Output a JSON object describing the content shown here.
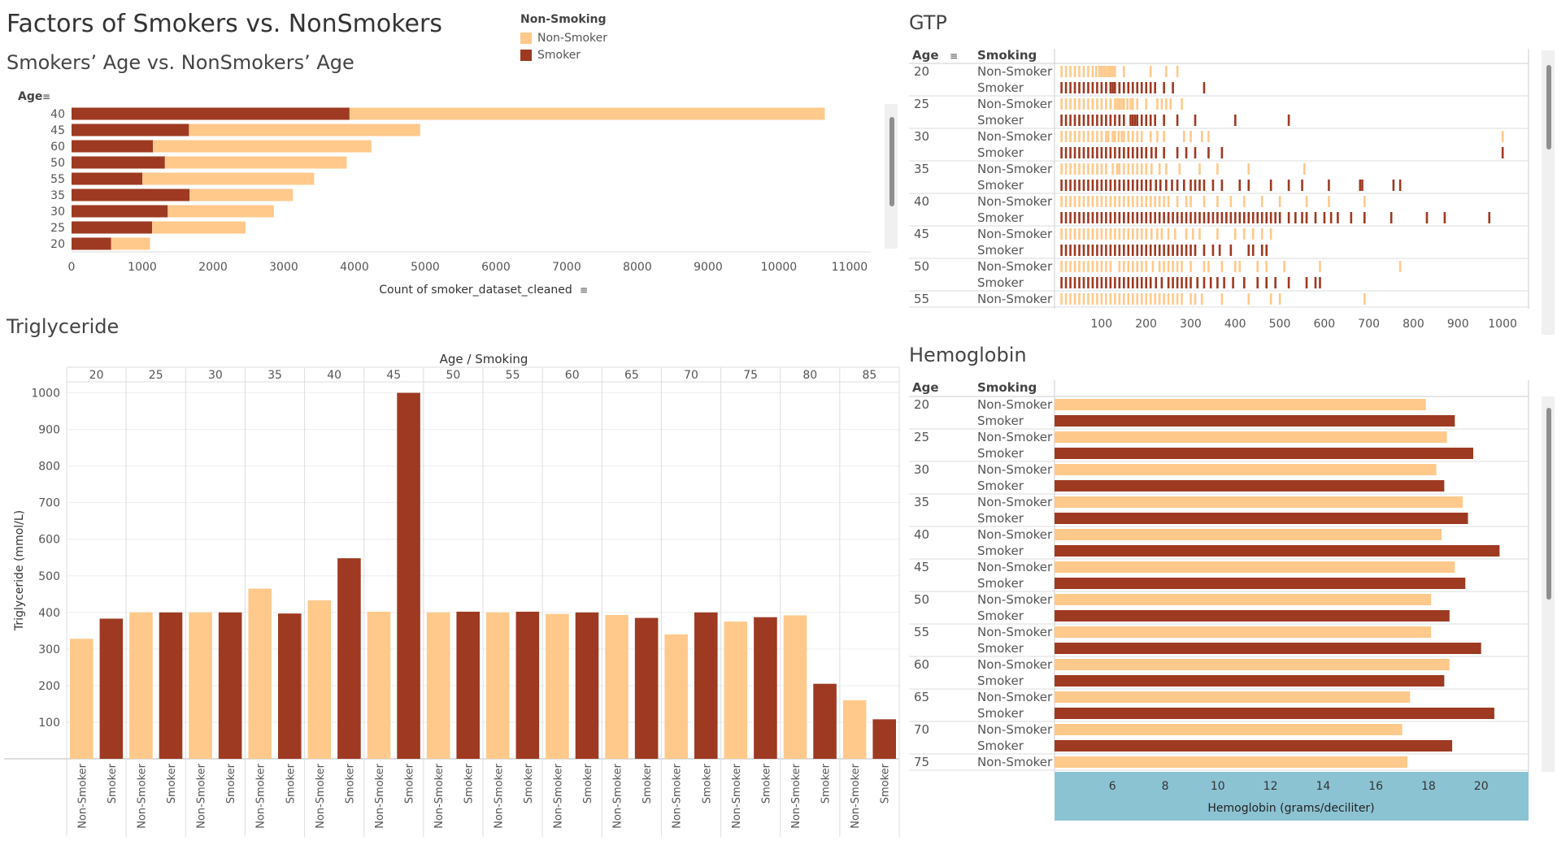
{
  "dashboard": {
    "title": "Factors of Smokers vs. NonSmokers"
  },
  "legend": {
    "title": "Non-Smoking",
    "items": [
      {
        "label": "Non-Smoker",
        "color": "#FFC98B"
      },
      {
        "label": "Smoker",
        "color": "#9E3A22"
      }
    ]
  },
  "colors": {
    "non_smoker": "#FFC98B",
    "smoker": "#9E3A22",
    "axis_highlight": "#8CC3D3"
  },
  "age_chart": {
    "title": "Smokers’ Age vs. NonSmokers’ Age",
    "chart_data": {
      "type": "bar",
      "orientation": "horizontal",
      "stacked": true,
      "y_header": "Age",
      "categories": [
        "40",
        "45",
        "60",
        "50",
        "55",
        "35",
        "30",
        "25",
        "20"
      ],
      "series": [
        {
          "name": "Smoker",
          "values": [
            3930,
            1660,
            1150,
            1320,
            1000,
            1670,
            1360,
            1140,
            560
          ]
        },
        {
          "name": "Non-Smoker",
          "values": [
            6720,
            3270,
            3090,
            2570,
            2430,
            1460,
            1500,
            1320,
            550
          ]
        }
      ],
      "xlabel": "Count of smoker_dataset_cleaned",
      "xlim": [
        0,
        11300
      ],
      "xticks": [
        0,
        1000,
        2000,
        3000,
        4000,
        5000,
        6000,
        7000,
        8000,
        9000,
        10000,
        11000
      ]
    }
  },
  "gtp_chart": {
    "title": "GTP",
    "header_age": "Age",
    "header_smoking": "Smoking",
    "chart_data": {
      "type": "scatter",
      "mark": "tick",
      "xlim": [
        0,
        1040
      ],
      "xticks": [
        100,
        200,
        300,
        400,
        500,
        600,
        700,
        800,
        900,
        1000
      ],
      "rows": [
        {
          "age": "20",
          "smoking": "Non-Smoker",
          "values": [
            10,
            20,
            30,
            40,
            50,
            60,
            70,
            80,
            88,
            95,
            100,
            105,
            110,
            115,
            120,
            125,
            130,
            150,
            210,
            245,
            270
          ]
        },
        {
          "age": "",
          "smoking": "Smoker",
          "values": [
            10,
            20,
            30,
            40,
            50,
            60,
            70,
            80,
            90,
            100,
            110,
            120,
            125,
            130,
            140,
            150,
            160,
            170,
            180,
            190,
            200,
            210,
            220,
            240,
            260,
            330
          ]
        },
        {
          "age": "25",
          "smoking": "Non-Smoker",
          "values": [
            10,
            20,
            30,
            40,
            50,
            60,
            70,
            80,
            90,
            100,
            110,
            120,
            130,
            135,
            140,
            145,
            150,
            158,
            165,
            170,
            180,
            200,
            225,
            235,
            245,
            255,
            280
          ]
        },
        {
          "age": "",
          "smoking": "Smoker",
          "values": [
            10,
            20,
            30,
            40,
            50,
            60,
            70,
            80,
            90,
            100,
            110,
            120,
            130,
            140,
            150,
            165,
            170,
            175,
            180,
            190,
            200,
            210,
            220,
            240,
            270,
            310,
            400,
            520
          ]
        },
        {
          "age": "30",
          "smoking": "Non-Smoker",
          "values": [
            10,
            20,
            30,
            40,
            50,
            60,
            70,
            80,
            90,
            100,
            110,
            115,
            125,
            130,
            138,
            145,
            150,
            160,
            170,
            180,
            190,
            210,
            225,
            240,
            285,
            300,
            325,
            340,
            1000
          ]
        },
        {
          "age": "",
          "smoking": "Smoker",
          "values": [
            10,
            20,
            30,
            40,
            50,
            60,
            70,
            80,
            90,
            100,
            110,
            120,
            130,
            140,
            150,
            160,
            170,
            180,
            190,
            200,
            212,
            222,
            240,
            270,
            290,
            310,
            340,
            370,
            1000
          ]
        },
        {
          "age": "35",
          "smoking": "Non-Smoker",
          "values": [
            10,
            20,
            30,
            40,
            50,
            60,
            70,
            80,
            90,
            100,
            110,
            125,
            135,
            140,
            150,
            160,
            170,
            180,
            190,
            200,
            212,
            230,
            245,
            275,
            320,
            360,
            430,
            555
          ]
        },
        {
          "age": "",
          "smoking": "Smoker",
          "values": [
            10,
            20,
            30,
            40,
            50,
            60,
            70,
            80,
            90,
            100,
            110,
            120,
            130,
            140,
            150,
            160,
            170,
            180,
            190,
            200,
            210,
            222,
            232,
            245,
            258,
            270,
            285,
            300,
            310,
            320,
            330,
            350,
            370,
            410,
            430,
            480,
            520,
            550,
            610,
            680,
            685,
            755,
            770
          ]
        },
        {
          "age": "40",
          "smoking": "Non-Smoker",
          "values": [
            10,
            20,
            30,
            40,
            50,
            60,
            70,
            80,
            90,
            100,
            110,
            120,
            130,
            140,
            150,
            160,
            170,
            180,
            190,
            200,
            210,
            220,
            230,
            240,
            250,
            270,
            290,
            300,
            330,
            360,
            390,
            420,
            460,
            500,
            560,
            610,
            690
          ]
        },
        {
          "age": "",
          "smoking": "Smoker",
          "values": [
            10,
            20,
            30,
            40,
            50,
            60,
            70,
            80,
            90,
            100,
            110,
            120,
            130,
            140,
            150,
            160,
            170,
            180,
            190,
            200,
            210,
            220,
            230,
            240,
            250,
            260,
            270,
            280,
            290,
            300,
            310,
            320,
            330,
            340,
            350,
            360,
            370,
            380,
            390,
            400,
            410,
            420,
            430,
            440,
            450,
            460,
            470,
            480,
            490,
            500,
            520,
            535,
            550,
            560,
            580,
            600,
            615,
            630,
            660,
            690,
            750,
            830,
            870,
            970
          ]
        },
        {
          "age": "45",
          "smoking": "Non-Smoker",
          "values": [
            10,
            20,
            30,
            40,
            50,
            60,
            70,
            80,
            90,
            100,
            110,
            120,
            130,
            140,
            150,
            160,
            170,
            180,
            190,
            200,
            212,
            225,
            235,
            250,
            265,
            290,
            305,
            320,
            360,
            400,
            420,
            440,
            460,
            480
          ]
        },
        {
          "age": "",
          "smoking": "Smoker",
          "values": [
            10,
            20,
            30,
            40,
            50,
            60,
            70,
            80,
            90,
            100,
            110,
            120,
            130,
            140,
            150,
            160,
            170,
            180,
            190,
            200,
            210,
            220,
            230,
            240,
            250,
            260,
            270,
            280,
            290,
            300,
            310,
            330,
            350,
            365,
            390,
            430,
            440,
            460,
            470
          ]
        },
        {
          "age": "50",
          "smoking": "Non-Smoker",
          "values": [
            10,
            20,
            30,
            40,
            50,
            60,
            70,
            80,
            90,
            100,
            110,
            120,
            140,
            150,
            160,
            170,
            180,
            190,
            200,
            215,
            230,
            240,
            250,
            260,
            270,
            280,
            300,
            330,
            340,
            370,
            400,
            410,
            450,
            470,
            510,
            590,
            770
          ]
        },
        {
          "age": "",
          "smoking": "Smoker",
          "values": [
            10,
            20,
            30,
            40,
            50,
            60,
            70,
            80,
            90,
            100,
            110,
            120,
            130,
            140,
            150,
            160,
            170,
            180,
            190,
            200,
            210,
            222,
            235,
            250,
            260,
            270,
            280,
            290,
            300,
            315,
            330,
            345,
            360,
            375,
            395,
            420,
            450,
            470,
            490,
            520,
            560,
            580,
            590
          ]
        },
        {
          "age": "55",
          "smoking": "Non-Smoker",
          "values": [
            10,
            20,
            30,
            40,
            50,
            60,
            70,
            80,
            90,
            100,
            110,
            120,
            130,
            140,
            150,
            160,
            170,
            180,
            190,
            200,
            210,
            220,
            230,
            240,
            250,
            260,
            270,
            280,
            300,
            310,
            325,
            370,
            430,
            480,
            500,
            690
          ]
        }
      ]
    }
  },
  "trig_chart": {
    "title": "Triglyceride",
    "header": "Age / Smoking",
    "chart_data": {
      "type": "bar",
      "ylabel": "Triglyceride (mmol/L)",
      "ylim": [
        0,
        1030
      ],
      "yticks": [
        100,
        200,
        300,
        400,
        500,
        600,
        700,
        800,
        900,
        1000
      ],
      "groups": [
        "20",
        "25",
        "30",
        "35",
        "40",
        "45",
        "50",
        "55",
        "60",
        "65",
        "70",
        "75",
        "80",
        "85"
      ],
      "sub_categories": [
        "Non-Smoker",
        "Smoker"
      ],
      "series": [
        {
          "name": "Non-Smoker",
          "values": [
            328,
            400,
            400,
            465,
            433,
            402,
            400,
            400,
            396,
            393,
            340,
            375,
            392,
            160
          ]
        },
        {
          "name": "Smoker",
          "values": [
            383,
            400,
            400,
            397,
            548,
            1000,
            402,
            402,
            400,
            385,
            400,
            387,
            205,
            108
          ]
        }
      ]
    }
  },
  "hemo_chart": {
    "title": "Hemoglobin",
    "header_age": "Age",
    "header_smoking": "Smoking",
    "chart_data": {
      "type": "bar",
      "orientation": "horizontal",
      "xlabel": "Hemoglobin (grams/deciliter)",
      "xlim": [
        3.8,
        21.8
      ],
      "xticks": [
        6,
        8,
        10,
        12,
        14,
        16,
        18,
        20
      ],
      "rows": [
        {
          "age": "20",
          "smoking": "Non-Smoker",
          "value": 17.9
        },
        {
          "age": "",
          "smoking": "Smoker",
          "value": 19.0
        },
        {
          "age": "25",
          "smoking": "Non-Smoker",
          "value": 18.7
        },
        {
          "age": "",
          "smoking": "Smoker",
          "value": 19.7
        },
        {
          "age": "30",
          "smoking": "Non-Smoker",
          "value": 18.3
        },
        {
          "age": "",
          "smoking": "Smoker",
          "value": 18.6
        },
        {
          "age": "35",
          "smoking": "Non-Smoker",
          "value": 19.3
        },
        {
          "age": "",
          "smoking": "Smoker",
          "value": 19.5
        },
        {
          "age": "40",
          "smoking": "Non-Smoker",
          "value": 18.5
        },
        {
          "age": "",
          "smoking": "Smoker",
          "value": 20.7
        },
        {
          "age": "45",
          "smoking": "Non-Smoker",
          "value": 19.0
        },
        {
          "age": "",
          "smoking": "Smoker",
          "value": 19.4
        },
        {
          "age": "50",
          "smoking": "Non-Smoker",
          "value": 18.1
        },
        {
          "age": "",
          "smoking": "Smoker",
          "value": 18.8
        },
        {
          "age": "55",
          "smoking": "Non-Smoker",
          "value": 18.1
        },
        {
          "age": "",
          "smoking": "Smoker",
          "value": 20.0
        },
        {
          "age": "60",
          "smoking": "Non-Smoker",
          "value": 18.8
        },
        {
          "age": "",
          "smoking": "Smoker",
          "value": 18.6
        },
        {
          "age": "65",
          "smoking": "Non-Smoker",
          "value": 17.3
        },
        {
          "age": "",
          "smoking": "Smoker",
          "value": 20.5
        },
        {
          "age": "70",
          "smoking": "Non-Smoker",
          "value": 17.0
        },
        {
          "age": "",
          "smoking": "Smoker",
          "value": 18.9
        },
        {
          "age": "75",
          "smoking": "Non-Smoker",
          "value": 17.2
        }
      ]
    }
  }
}
